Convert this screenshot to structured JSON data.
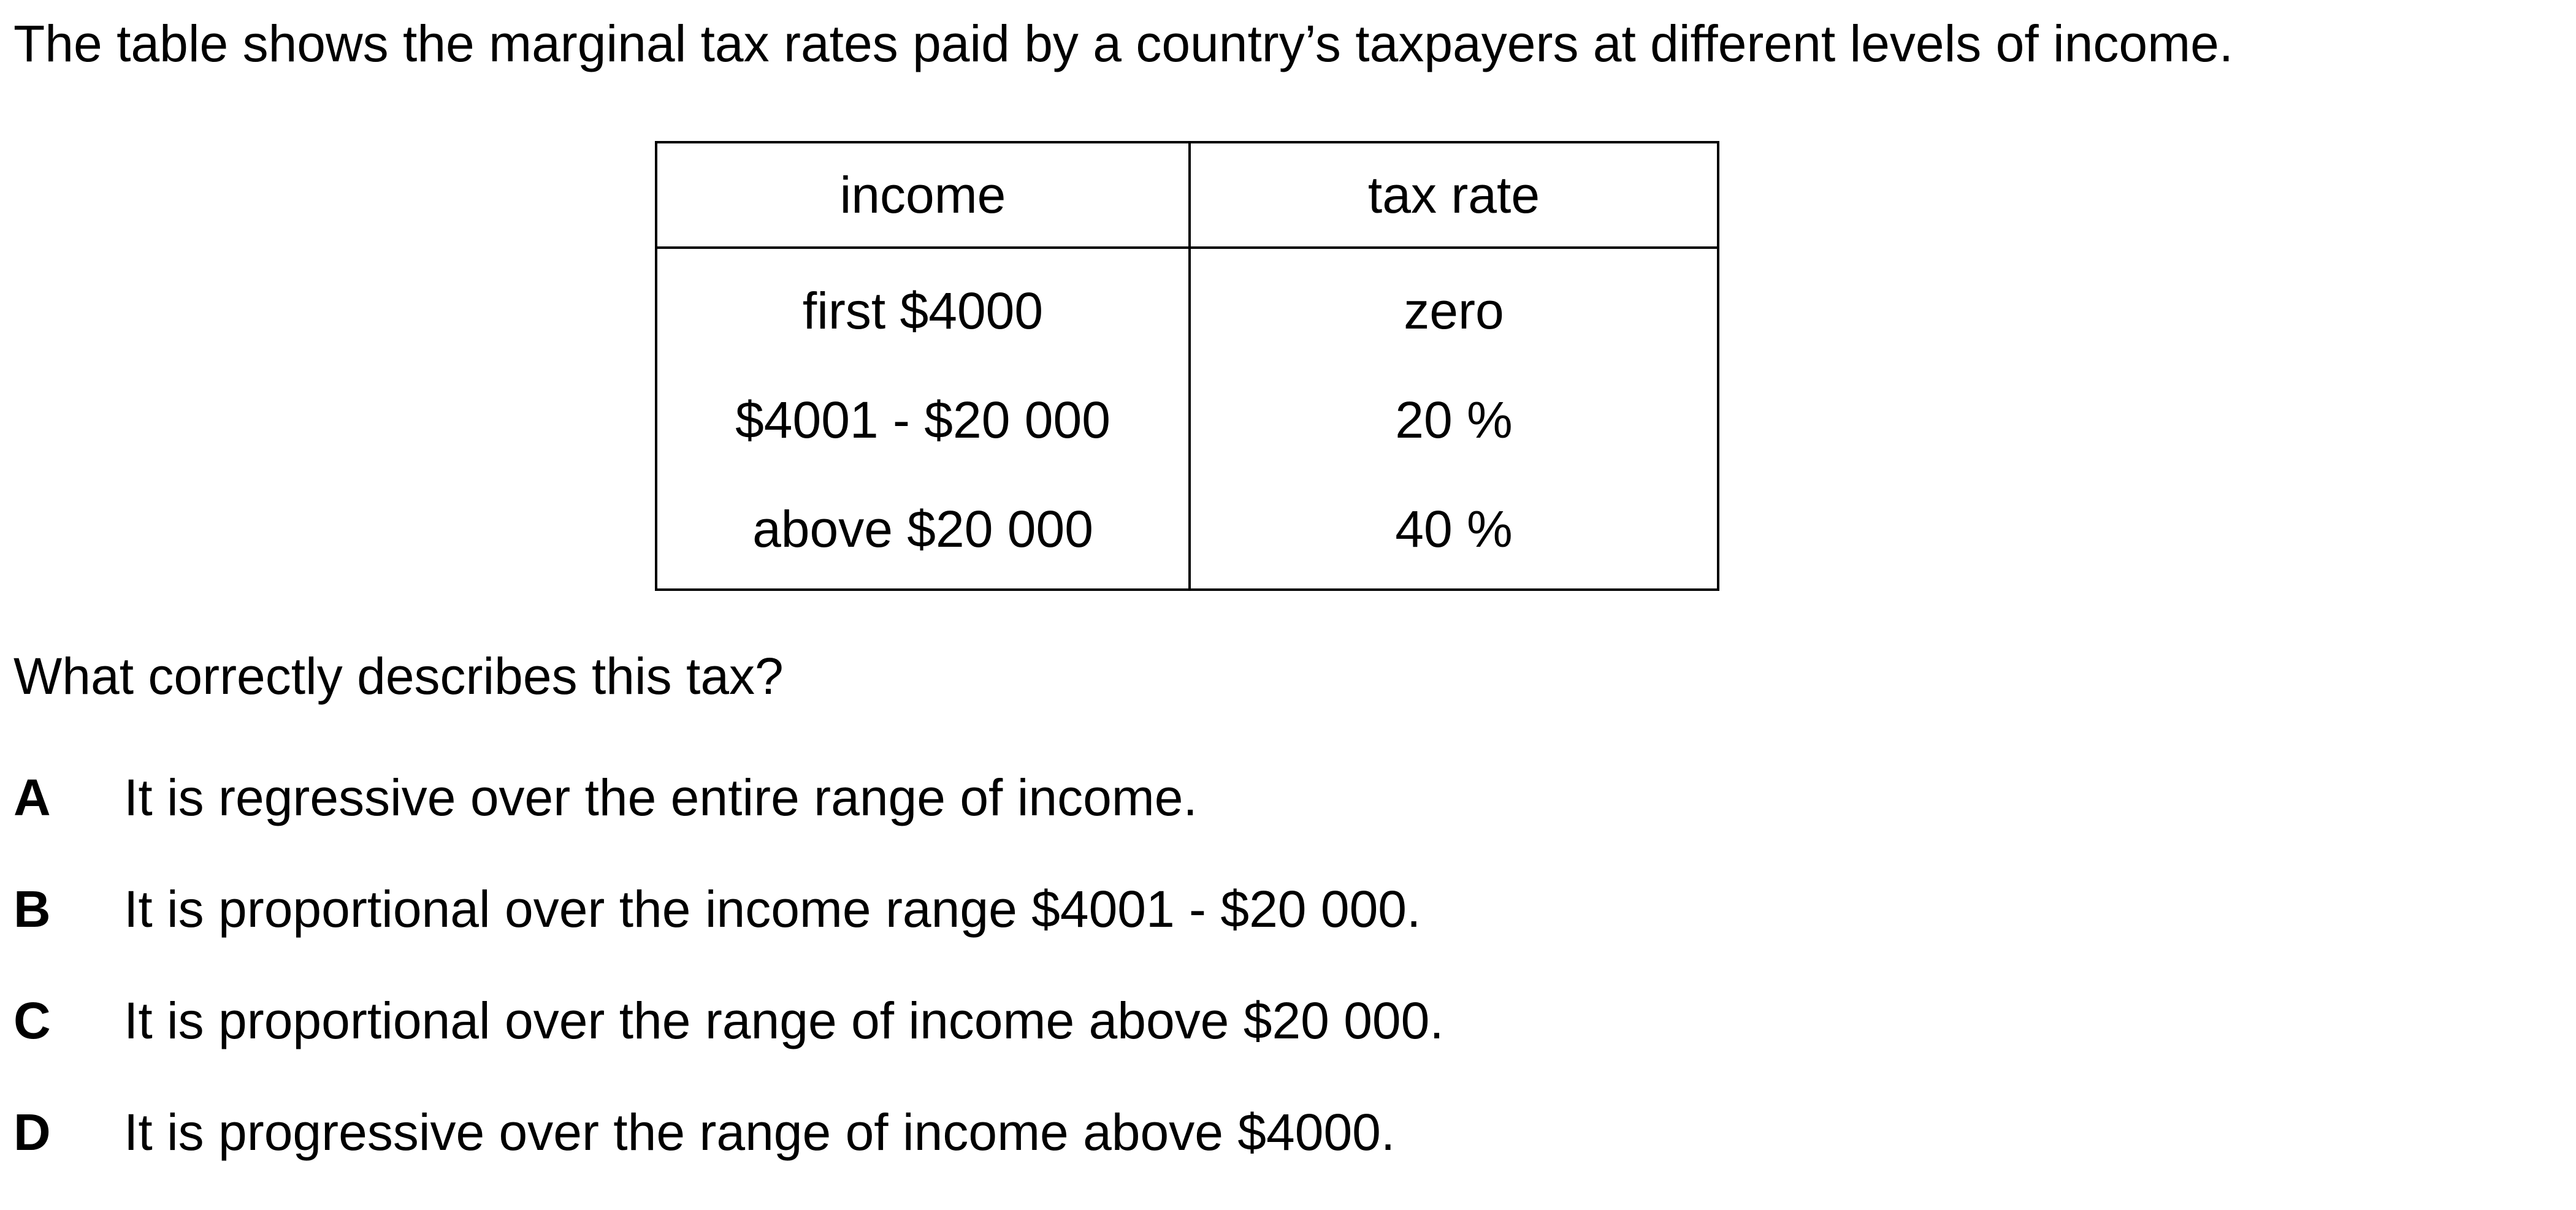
{
  "intro": "The table shows the marginal tax rates paid by a country’s taxpayers at different levels of income.",
  "table": {
    "headers": {
      "income": "income",
      "tax_rate": "tax rate"
    },
    "rows": [
      {
        "income": "first $4000",
        "tax_rate": "zero"
      },
      {
        "income": "$4001 - $20 000",
        "tax_rate": "20 %"
      },
      {
        "income": "above $20 000",
        "tax_rate": "40 %"
      }
    ]
  },
  "question": "What correctly describes this tax?",
  "options": [
    {
      "letter": "A",
      "text": "It is regressive over the entire range of income."
    },
    {
      "letter": "B",
      "text": "It is proportional over the income range $4001 - $20 000."
    },
    {
      "letter": "C",
      "text": "It is proportional over the range of income above $20 000."
    },
    {
      "letter": "D",
      "text": "It is progressive over the range of income above $4000."
    }
  ]
}
